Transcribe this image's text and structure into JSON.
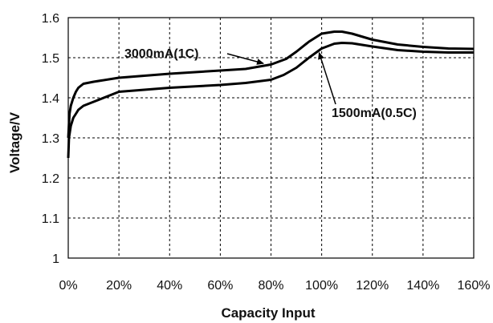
{
  "chart_data": {
    "type": "line",
    "xlabel": "Capacity Input",
    "ylabel": "Voltage/V",
    "xlim": [
      0,
      160
    ],
    "ylim": [
      1.0,
      1.6
    ],
    "x_ticks": [
      "0%",
      "20%",
      "40%",
      "60%",
      "80%",
      "100%",
      "120%",
      "140%",
      "160%"
    ],
    "x_tick_values": [
      0,
      20,
      40,
      60,
      80,
      100,
      120,
      140,
      160
    ],
    "y_ticks": [
      "1",
      "1.1",
      "1.2",
      "1.3",
      "1.4",
      "1.5",
      "1.6"
    ],
    "y_tick_values": [
      1.0,
      1.1,
      1.2,
      1.3,
      1.4,
      1.5,
      1.6
    ],
    "grid": true,
    "series": [
      {
        "name": "3000mA(1C)",
        "x": [
          0,
          0.5,
          1,
          2,
          3,
          4,
          6,
          10,
          20,
          40,
          60,
          70,
          80,
          86,
          90,
          95,
          100,
          105,
          108,
          112,
          120,
          130,
          140,
          150,
          160
        ],
        "y": [
          1.3,
          1.36,
          1.38,
          1.4,
          1.415,
          1.425,
          1.435,
          1.44,
          1.45,
          1.46,
          1.468,
          1.472,
          1.483,
          1.497,
          1.515,
          1.54,
          1.56,
          1.565,
          1.565,
          1.56,
          1.545,
          1.533,
          1.527,
          1.523,
          1.522
        ]
      },
      {
        "name": "1500mA(0.5C)",
        "x": [
          0,
          0.3,
          1,
          2,
          3,
          4,
          6,
          10,
          20,
          40,
          60,
          70,
          80,
          85,
          90,
          95,
          100,
          105,
          108,
          112,
          120,
          130,
          140,
          150,
          160
        ],
        "y": [
          1.25,
          1.3,
          1.33,
          1.35,
          1.36,
          1.37,
          1.38,
          1.39,
          1.415,
          1.425,
          1.432,
          1.437,
          1.445,
          1.457,
          1.475,
          1.5,
          1.523,
          1.535,
          1.537,
          1.536,
          1.528,
          1.519,
          1.515,
          1.513,
          1.513
        ]
      }
    ],
    "annotations": [
      {
        "text": "3000mA(1C)",
        "series": 0,
        "arrow_to_x": 77
      },
      {
        "text": "1500mA(0.5C)",
        "series": 1,
        "arrow_to_x": 99
      }
    ]
  }
}
